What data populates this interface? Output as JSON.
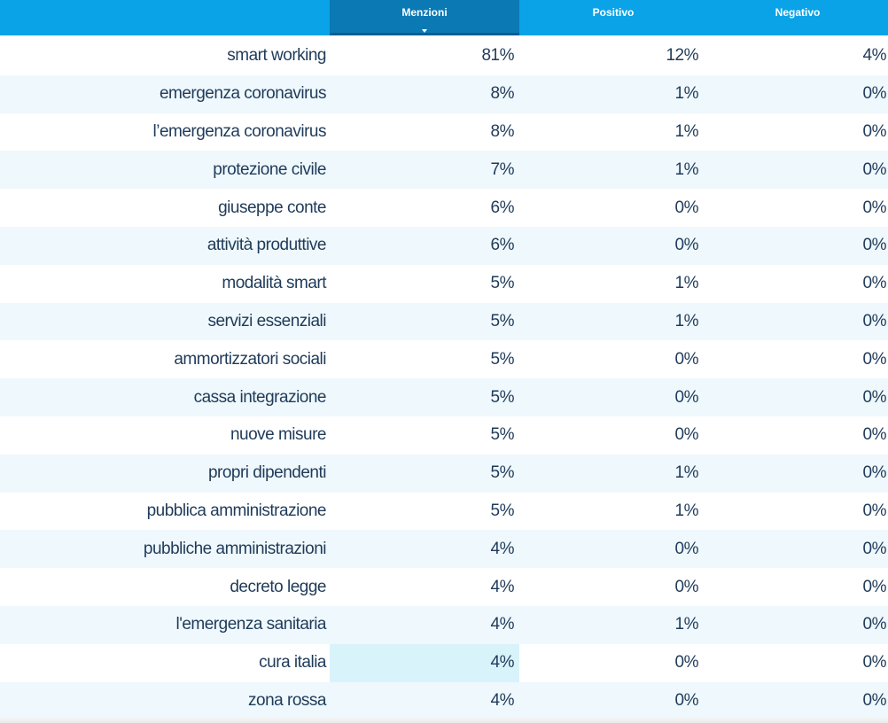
{
  "table": {
    "columns": [
      {
        "label": "Menzioni",
        "sorted": true
      },
      {
        "label": "Positivo",
        "sorted": false
      },
      {
        "label": "Negativo",
        "sorted": false
      }
    ],
    "rows": [
      {
        "term": "smart working",
        "menzioni": "81%",
        "positivo": "12%",
        "negativo": "4%"
      },
      {
        "term": "emergenza coronavirus",
        "menzioni": "8%",
        "positivo": "1%",
        "negativo": "0%"
      },
      {
        "term": "l’emergenza coronavirus",
        "menzioni": "8%",
        "positivo": "1%",
        "negativo": "0%"
      },
      {
        "term": "protezione civile",
        "menzioni": "7%",
        "positivo": "1%",
        "negativo": "0%"
      },
      {
        "term": "giuseppe conte",
        "menzioni": "6%",
        "positivo": "0%",
        "negativo": "0%"
      },
      {
        "term": "attività produttive",
        "menzioni": "6%",
        "positivo": "0%",
        "negativo": "0%"
      },
      {
        "term": "modalità smart",
        "menzioni": "5%",
        "positivo": "1%",
        "negativo": "0%"
      },
      {
        "term": "servizi essenziali",
        "menzioni": "5%",
        "positivo": "1%",
        "negativo": "0%"
      },
      {
        "term": "ammortizzatori sociali",
        "menzioni": "5%",
        "positivo": "0%",
        "negativo": "0%"
      },
      {
        "term": "cassa integrazione",
        "menzioni": "5%",
        "positivo": "0%",
        "negativo": "0%"
      },
      {
        "term": "nuove misure",
        "menzioni": "5%",
        "positivo": "0%",
        "negativo": "0%"
      },
      {
        "term": "propri dipendenti",
        "menzioni": "5%",
        "positivo": "1%",
        "negativo": "0%"
      },
      {
        "term": "pubblica amministrazione",
        "menzioni": "5%",
        "positivo": "1%",
        "negativo": "0%"
      },
      {
        "term": "pubbliche amministrazioni",
        "menzioni": "4%",
        "positivo": "0%",
        "negativo": "0%"
      },
      {
        "term": "decreto legge",
        "menzioni": "4%",
        "positivo": "0%",
        "negativo": "0%"
      },
      {
        "term": "l'emergenza sanitaria",
        "menzioni": "4%",
        "positivo": "1%",
        "negativo": "0%"
      },
      {
        "term": "cura italia",
        "menzioni": "4%",
        "positivo": "0%",
        "negativo": "0%",
        "hovered": true
      },
      {
        "term": "zona rossa",
        "menzioni": "4%",
        "positivo": "0%",
        "negativo": "0%"
      }
    ]
  },
  "colors": {
    "header": "#0ba3e8",
    "header_active": "#0b79b4",
    "row_alt": "#eff8fc",
    "text": "#1f3b5a",
    "hover": "#d9f3fb"
  }
}
